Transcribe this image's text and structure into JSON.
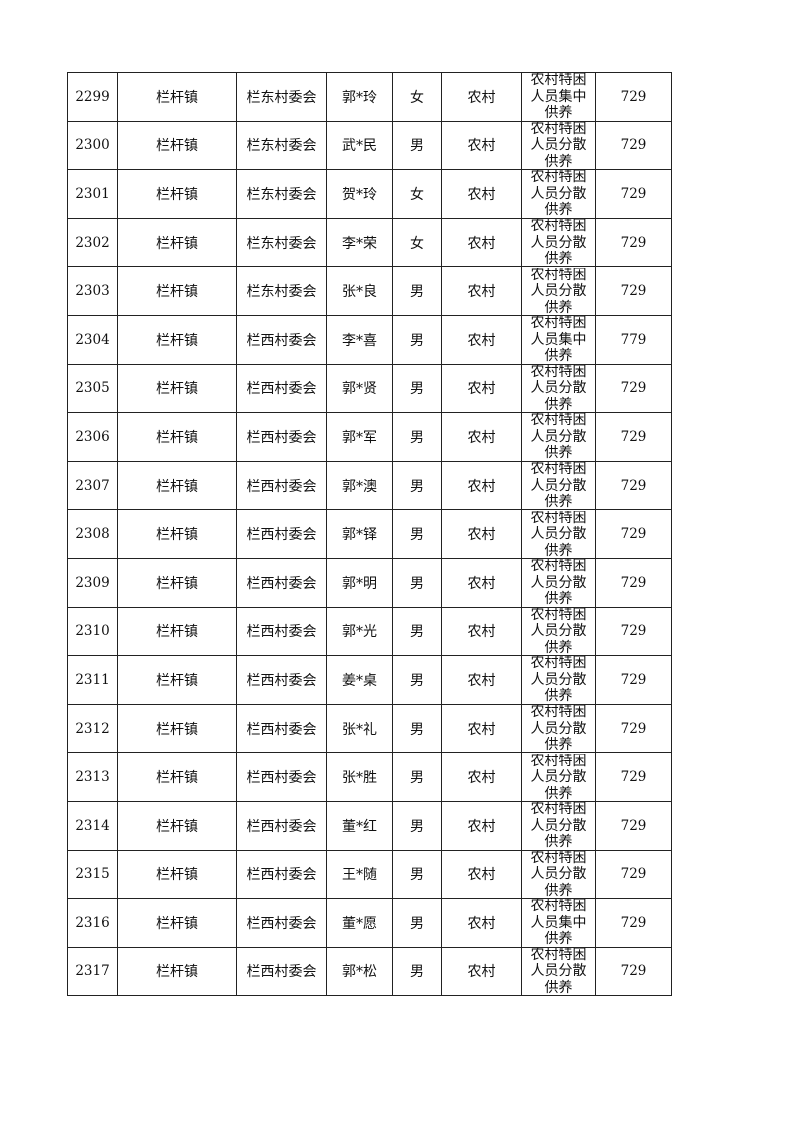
{
  "table": {
    "rows": [
      [
        "2299",
        "栏杆镇",
        "栏东村委会",
        "郭*玲",
        "女",
        "农村",
        "农村特困人员集中供养",
        "729"
      ],
      [
        "2300",
        "栏杆镇",
        "栏东村委会",
        "武*民",
        "男",
        "农村",
        "农村特困人员分散供养",
        "729"
      ],
      [
        "2301",
        "栏杆镇",
        "栏东村委会",
        "贺*玲",
        "女",
        "农村",
        "农村特困人员分散供养",
        "729"
      ],
      [
        "2302",
        "栏杆镇",
        "栏东村委会",
        "李*荣",
        "女",
        "农村",
        "农村特困人员分散供养",
        "729"
      ],
      [
        "2303",
        "栏杆镇",
        "栏东村委会",
        "张*良",
        "男",
        "农村",
        "农村特困人员分散供养",
        "729"
      ],
      [
        "2304",
        "栏杆镇",
        "栏西村委会",
        "李*喜",
        "男",
        "农村",
        "农村特困人员集中供养",
        "779"
      ],
      [
        "2305",
        "栏杆镇",
        "栏西村委会",
        "郭*贤",
        "男",
        "农村",
        "农村特困人员分散供养",
        "729"
      ],
      [
        "2306",
        "栏杆镇",
        "栏西村委会",
        "郭*军",
        "男",
        "农村",
        "农村特困人员分散供养",
        "729"
      ],
      [
        "2307",
        "栏杆镇",
        "栏西村委会",
        "郭*澳",
        "男",
        "农村",
        "农村特困人员分散供养",
        "729"
      ],
      [
        "2308",
        "栏杆镇",
        "栏西村委会",
        "郭*铎",
        "男",
        "农村",
        "农村特困人员分散供养",
        "729"
      ],
      [
        "2309",
        "栏杆镇",
        "栏西村委会",
        "郭*明",
        "男",
        "农村",
        "农村特困人员分散供养",
        "729"
      ],
      [
        "2310",
        "栏杆镇",
        "栏西村委会",
        "郭*光",
        "男",
        "农村",
        "农村特困人员分散供养",
        "729"
      ],
      [
        "2311",
        "栏杆镇",
        "栏西村委会",
        "姜*桌",
        "男",
        "农村",
        "农村特困人员分散供养",
        "729"
      ],
      [
        "2312",
        "栏杆镇",
        "栏西村委会",
        "张*礼",
        "男",
        "农村",
        "农村特困人员分散供养",
        "729"
      ],
      [
        "2313",
        "栏杆镇",
        "栏西村委会",
        "张*胜",
        "男",
        "农村",
        "农村特困人员分散供养",
        "729"
      ],
      [
        "2314",
        "栏杆镇",
        "栏西村委会",
        "董*红",
        "男",
        "农村",
        "农村特困人员分散供养",
        "729"
      ],
      [
        "2315",
        "栏杆镇",
        "栏西村委会",
        "王*随",
        "男",
        "农村",
        "农村特困人员分散供养",
        "729"
      ],
      [
        "2316",
        "栏杆镇",
        "栏西村委会",
        "董*愿",
        "男",
        "农村",
        "农村特困人员集中供养",
        "729"
      ],
      [
        "2317",
        "栏杆镇",
        "栏西村委会",
        "郭*松",
        "男",
        "农村",
        "农村特困人员分散供养",
        "729"
      ]
    ]
  }
}
